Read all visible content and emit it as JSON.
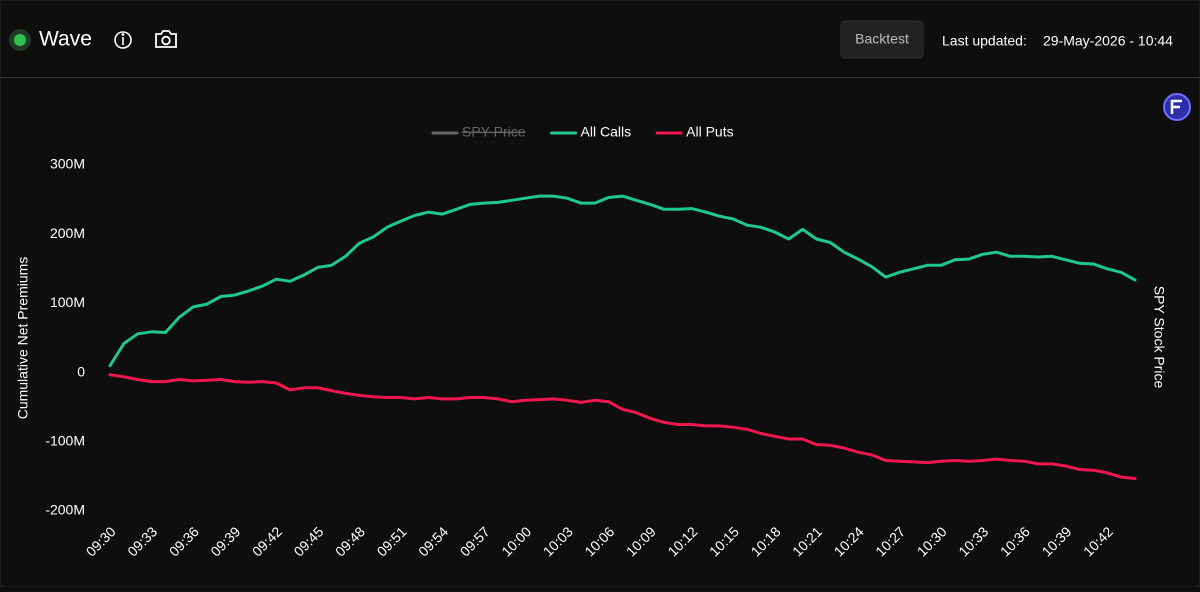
{
  "header": {
    "title": "Wave",
    "backtest": "Backtest",
    "last_updated_label": "Last updated:",
    "last_updated": "29-May-2026 - 10:44"
  },
  "chart_data": {
    "type": "line",
    "y_label": "Cumulative Net Premiums",
    "y2_label": "SPY Stock Price",
    "categories": [
      "09:30",
      null,
      null,
      "09:33",
      null,
      null,
      "09:36",
      null,
      null,
      "09:39",
      null,
      null,
      "09:42",
      null,
      null,
      "09:45",
      null,
      null,
      "09:48",
      null,
      null,
      "09:51",
      null,
      null,
      "09:54",
      null,
      null,
      "09:57",
      null,
      null,
      "10:00",
      null,
      null,
      "10:03",
      null,
      null,
      "10:06",
      null,
      null,
      "10:09",
      null,
      null,
      "10:12",
      null,
      null,
      "10:15",
      null,
      null,
      "10:18",
      null,
      null,
      "10:21",
      null,
      null,
      "10:24",
      null,
      null,
      "10:27",
      null,
      null,
      "10:30",
      null,
      null,
      "10:33",
      null,
      null,
      "10:36",
      null,
      null,
      "10:39",
      null,
      null,
      "10:42",
      null,
      null
    ],
    "series": [
      {
        "name": "SPY Price",
        "color": "#666666",
        "hidden": true
      },
      {
        "name": "All Calls",
        "color": "#1fc88c",
        "values": [
          10000000,
          42000000,
          56000000,
          59000000,
          58000000,
          80000000,
          95000000,
          99000000,
          110000000,
          112000000,
          118000000,
          125000000,
          135000000,
          132000000,
          141000000,
          152000000,
          155000000,
          168000000,
          187000000,
          196000000,
          210000000,
          219000000,
          227000000,
          232000000,
          229000000,
          236000000,
          243000000,
          245000000,
          246000000,
          249000000,
          252000000,
          255000000,
          255000000,
          252000000,
          245000000,
          245000000,
          253000000,
          255000000,
          249000000,
          243000000,
          236000000,
          236000000,
          237000000,
          232000000,
          226000000,
          222000000,
          213000000,
          210000000,
          203000000,
          193000000,
          207000000,
          193000000,
          188000000,
          174000000,
          164000000,
          153000000,
          138000000,
          145000000,
          150000000,
          155000000,
          155000000,
          163000000,
          164000000,
          171000000,
          174000000,
          168000000,
          168000000,
          167000000,
          168000000,
          163000000,
          158000000,
          157000000,
          150000000,
          145000000,
          134000000
        ]
      },
      {
        "name": "All Puts",
        "color": "#f0174f",
        "values": [
          -3000000,
          -6000000,
          -10000000,
          -13000000,
          -13000000,
          -10000000,
          -12000000,
          -11000000,
          -10000000,
          -13000000,
          -14000000,
          -13000000,
          -15000000,
          -25000000,
          -22000000,
          -22000000,
          -26000000,
          -30000000,
          -33000000,
          -35000000,
          -36000000,
          -36000000,
          -38000000,
          -36000000,
          -38000000,
          -38000000,
          -36000000,
          -36000000,
          -38000000,
          -42000000,
          -40000000,
          -39000000,
          -38000000,
          -40000000,
          -43000000,
          -40000000,
          -42000000,
          -53000000,
          -58000000,
          -66000000,
          -72000000,
          -75000000,
          -75000000,
          -77000000,
          -77000000,
          -79000000,
          -82000000,
          -88000000,
          -92000000,
          -96000000,
          -96000000,
          -104000000,
          -105000000,
          -109000000,
          -115000000,
          -119000000,
          -127000000,
          -128000000,
          -129000000,
          -130000000,
          -128000000,
          -127000000,
          -128000000,
          -127000000,
          -125000000,
          -127000000,
          -128000000,
          -132000000,
          -132000000,
          -135000000,
          -140000000,
          -141000000,
          -145000000,
          -151000000,
          -153000000
        ]
      }
    ],
    "ylim": [
      -200000000,
      300000000
    ],
    "yticks": [
      {
        "value": -200000000,
        "label": "-200M"
      },
      {
        "value": -100000000,
        "label": "-100M"
      },
      0,
      {
        "value": 100000000,
        "label": "100M"
      },
      {
        "value": 200000000,
        "label": "200M"
      },
      {
        "value": 300000000,
        "label": "300M"
      }
    ],
    "grid": false
  }
}
